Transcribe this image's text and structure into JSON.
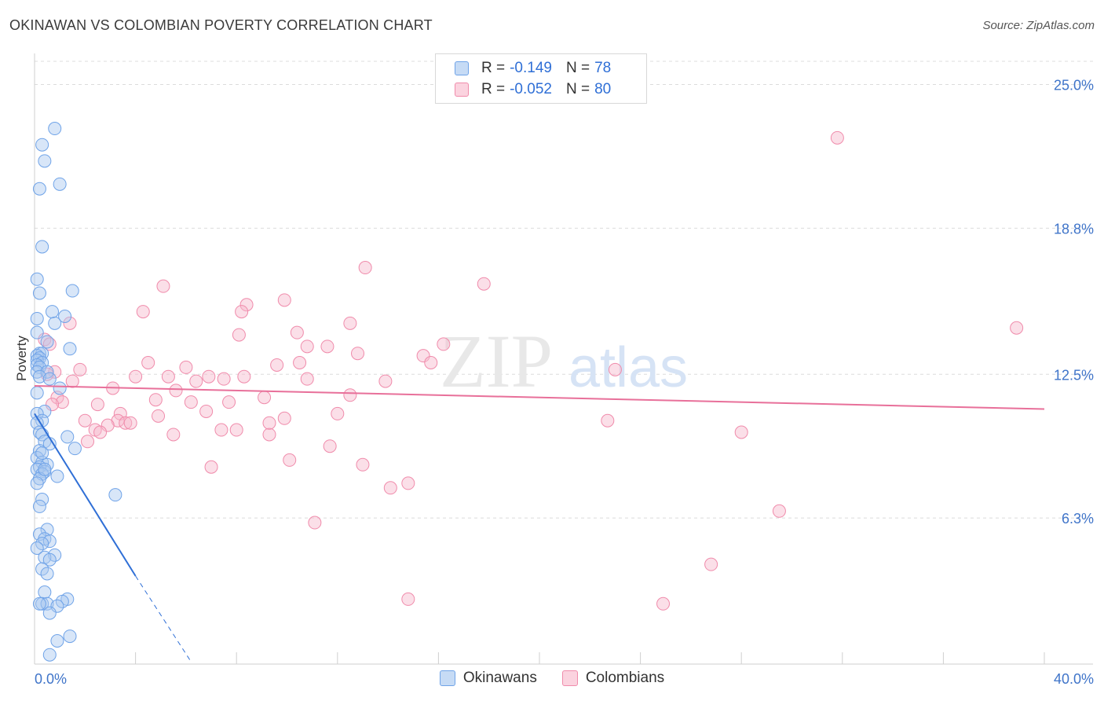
{
  "header": {
    "title": "OKINAWAN VS COLOMBIAN POVERTY CORRELATION CHART",
    "source": "Source: ZipAtlas.com"
  },
  "legend_box": {
    "rows": [
      {
        "r_label": "R =",
        "r_value": "-0.149",
        "n_label": "N =",
        "n_value": "78",
        "color": "#a9c8f0"
      },
      {
        "r_label": "R =",
        "r_value": "-0.052",
        "n_label": "N =",
        "n_value": "80",
        "color": "#f7b9cc"
      }
    ]
  },
  "bottom_legend": {
    "items": [
      {
        "label": "Okinawans",
        "color": "#a9c8f0"
      },
      {
        "label": "Colombians",
        "color": "#f7b9cc"
      }
    ]
  },
  "watermark": {
    "zip": "ZIP",
    "atlas": "atlas"
  },
  "chart_data": {
    "type": "scatter",
    "title": "OKINAWAN VS COLOMBIAN POVERTY CORRELATION CHART",
    "ylabel": "Poverty",
    "xlabel": "",
    "xlim": [
      0,
      40
    ],
    "ylim": [
      0,
      26
    ],
    "x_tick_labels": [
      {
        "value": 0,
        "label": "0.0%"
      },
      {
        "value": 40,
        "label": "40.0%"
      }
    ],
    "y_tick_labels": [
      {
        "value": 6.3,
        "label": "6.3%"
      },
      {
        "value": 12.5,
        "label": "12.5%"
      },
      {
        "value": 18.8,
        "label": "18.8%"
      },
      {
        "value": 25.0,
        "label": "25.0%"
      }
    ],
    "grid": true,
    "legend_position": "top-center",
    "colors": {
      "okinawans": "#6fa3e8",
      "colombians": "#f08bab",
      "okinawans_line": "#2f6fd6",
      "colombians_line": "#e8709a"
    },
    "series": [
      {
        "name": "Okinawans",
        "trendline": {
          "x_start": 0.0,
          "y_start": 10.8,
          "x_solid_end": 4.0,
          "y_solid_end": 3.8,
          "x_end": 6.2,
          "y_end": 0.1
        },
        "points": [
          [
            0.8,
            23.1
          ],
          [
            0.3,
            22.4
          ],
          [
            0.4,
            21.7
          ],
          [
            1.0,
            20.7
          ],
          [
            0.2,
            20.5
          ],
          [
            0.3,
            18.0
          ],
          [
            0.1,
            16.6
          ],
          [
            1.5,
            16.1
          ],
          [
            0.2,
            16.0
          ],
          [
            0.7,
            15.2
          ],
          [
            1.2,
            15.0
          ],
          [
            0.1,
            14.9
          ],
          [
            0.8,
            14.7
          ],
          [
            0.1,
            14.3
          ],
          [
            0.5,
            13.9
          ],
          [
            1.4,
            13.6
          ],
          [
            0.2,
            13.4
          ],
          [
            0.3,
            13.4
          ],
          [
            0.1,
            13.3
          ],
          [
            0.2,
            13.2
          ],
          [
            0.1,
            13.1
          ],
          [
            0.3,
            13.0
          ],
          [
            0.1,
            12.9
          ],
          [
            0.2,
            12.8
          ],
          [
            0.1,
            12.6
          ],
          [
            0.5,
            12.6
          ],
          [
            0.2,
            12.4
          ],
          [
            0.6,
            12.3
          ],
          [
            1.0,
            11.9
          ],
          [
            0.1,
            11.7
          ],
          [
            0.4,
            10.9
          ],
          [
            0.1,
            10.8
          ],
          [
            0.3,
            10.5
          ],
          [
            0.1,
            10.4
          ],
          [
            0.2,
            10.0
          ],
          [
            0.3,
            9.9
          ],
          [
            1.3,
            9.8
          ],
          [
            0.4,
            9.6
          ],
          [
            0.6,
            9.5
          ],
          [
            1.6,
            9.3
          ],
          [
            0.2,
            9.2
          ],
          [
            0.1,
            8.9
          ],
          [
            0.3,
            8.7
          ],
          [
            0.5,
            8.6
          ],
          [
            0.2,
            8.5
          ],
          [
            0.1,
            8.4
          ],
          [
            0.4,
            8.3
          ],
          [
            0.3,
            8.2
          ],
          [
            0.9,
            8.1
          ],
          [
            0.2,
            8.0
          ],
          [
            0.1,
            7.8
          ],
          [
            3.2,
            7.3
          ],
          [
            0.3,
            7.1
          ],
          [
            0.2,
            6.8
          ],
          [
            0.5,
            5.8
          ],
          [
            0.2,
            5.6
          ],
          [
            0.4,
            5.4
          ],
          [
            0.6,
            5.3
          ],
          [
            0.3,
            5.2
          ],
          [
            0.1,
            5.0
          ],
          [
            0.8,
            4.7
          ],
          [
            0.4,
            4.6
          ],
          [
            0.6,
            4.5
          ],
          [
            0.3,
            4.1
          ],
          [
            0.5,
            3.9
          ],
          [
            0.4,
            3.1
          ],
          [
            1.3,
            2.8
          ],
          [
            1.1,
            2.7
          ],
          [
            0.3,
            2.6
          ],
          [
            0.5,
            2.6
          ],
          [
            0.9,
            2.5
          ],
          [
            0.6,
            2.2
          ],
          [
            1.4,
            1.2
          ],
          [
            0.9,
            1.0
          ],
          [
            0.6,
            0.4
          ],
          [
            0.2,
            2.6
          ],
          [
            0.4,
            8.4
          ],
          [
            0.3,
            9.1
          ]
        ]
      },
      {
        "name": "Colombians",
        "trendline": {
          "x_start": 0.0,
          "y_start": 12.0,
          "x_end": 40.0,
          "y_end": 11.0
        },
        "points": [
          [
            31.8,
            22.7
          ],
          [
            13.1,
            17.1
          ],
          [
            17.8,
            16.4
          ],
          [
            5.1,
            16.3
          ],
          [
            8.4,
            15.5
          ],
          [
            4.3,
            15.2
          ],
          [
            8.2,
            15.2
          ],
          [
            9.9,
            15.7
          ],
          [
            12.5,
            14.7
          ],
          [
            38.9,
            14.5
          ],
          [
            1.4,
            14.7
          ],
          [
            8.1,
            14.2
          ],
          [
            10.4,
            14.3
          ],
          [
            0.4,
            14.0
          ],
          [
            0.6,
            13.8
          ],
          [
            11.6,
            13.7
          ],
          [
            10.8,
            13.7
          ],
          [
            16.2,
            13.8
          ],
          [
            12.8,
            13.4
          ],
          [
            15.4,
            13.3
          ],
          [
            4.5,
            13.0
          ],
          [
            6.0,
            12.8
          ],
          [
            10.5,
            13.0
          ],
          [
            15.7,
            13.0
          ],
          [
            9.6,
            12.9
          ],
          [
            23.0,
            12.7
          ],
          [
            0.8,
            12.6
          ],
          [
            1.8,
            12.7
          ],
          [
            4.0,
            12.4
          ],
          [
            0.5,
            12.5
          ],
          [
            5.3,
            12.4
          ],
          [
            6.9,
            12.4
          ],
          [
            7.5,
            12.3
          ],
          [
            8.3,
            12.4
          ],
          [
            1.5,
            12.2
          ],
          [
            6.4,
            12.2
          ],
          [
            10.8,
            12.3
          ],
          [
            13.9,
            12.2
          ],
          [
            3.1,
            11.9
          ],
          [
            5.6,
            11.8
          ],
          [
            0.9,
            11.5
          ],
          [
            1.1,
            11.3
          ],
          [
            2.5,
            11.2
          ],
          [
            4.8,
            11.4
          ],
          [
            7.7,
            11.3
          ],
          [
            9.1,
            11.5
          ],
          [
            12.5,
            11.6
          ],
          [
            0.7,
            11.2
          ],
          [
            6.2,
            11.3
          ],
          [
            3.4,
            10.8
          ],
          [
            6.8,
            10.9
          ],
          [
            2.0,
            10.5
          ],
          [
            3.3,
            10.5
          ],
          [
            3.6,
            10.4
          ],
          [
            2.9,
            10.3
          ],
          [
            3.8,
            10.4
          ],
          [
            8.0,
            10.1
          ],
          [
            9.9,
            10.6
          ],
          [
            4.9,
            10.7
          ],
          [
            2.4,
            10.1
          ],
          [
            2.6,
            10.0
          ],
          [
            12.0,
            10.8
          ],
          [
            22.7,
            10.5
          ],
          [
            7.4,
            10.1
          ],
          [
            9.3,
            9.9
          ],
          [
            5.5,
            9.9
          ],
          [
            28.0,
            10.0
          ],
          [
            2.1,
            9.6
          ],
          [
            11.7,
            9.4
          ],
          [
            10.1,
            8.8
          ],
          [
            13.0,
            8.6
          ],
          [
            7.0,
            8.5
          ],
          [
            14.8,
            7.8
          ],
          [
            14.1,
            7.6
          ],
          [
            11.1,
            6.1
          ],
          [
            29.5,
            6.6
          ],
          [
            26.8,
            4.3
          ],
          [
            14.8,
            2.8
          ],
          [
            24.9,
            2.6
          ],
          [
            9.3,
            10.4
          ]
        ]
      }
    ]
  }
}
